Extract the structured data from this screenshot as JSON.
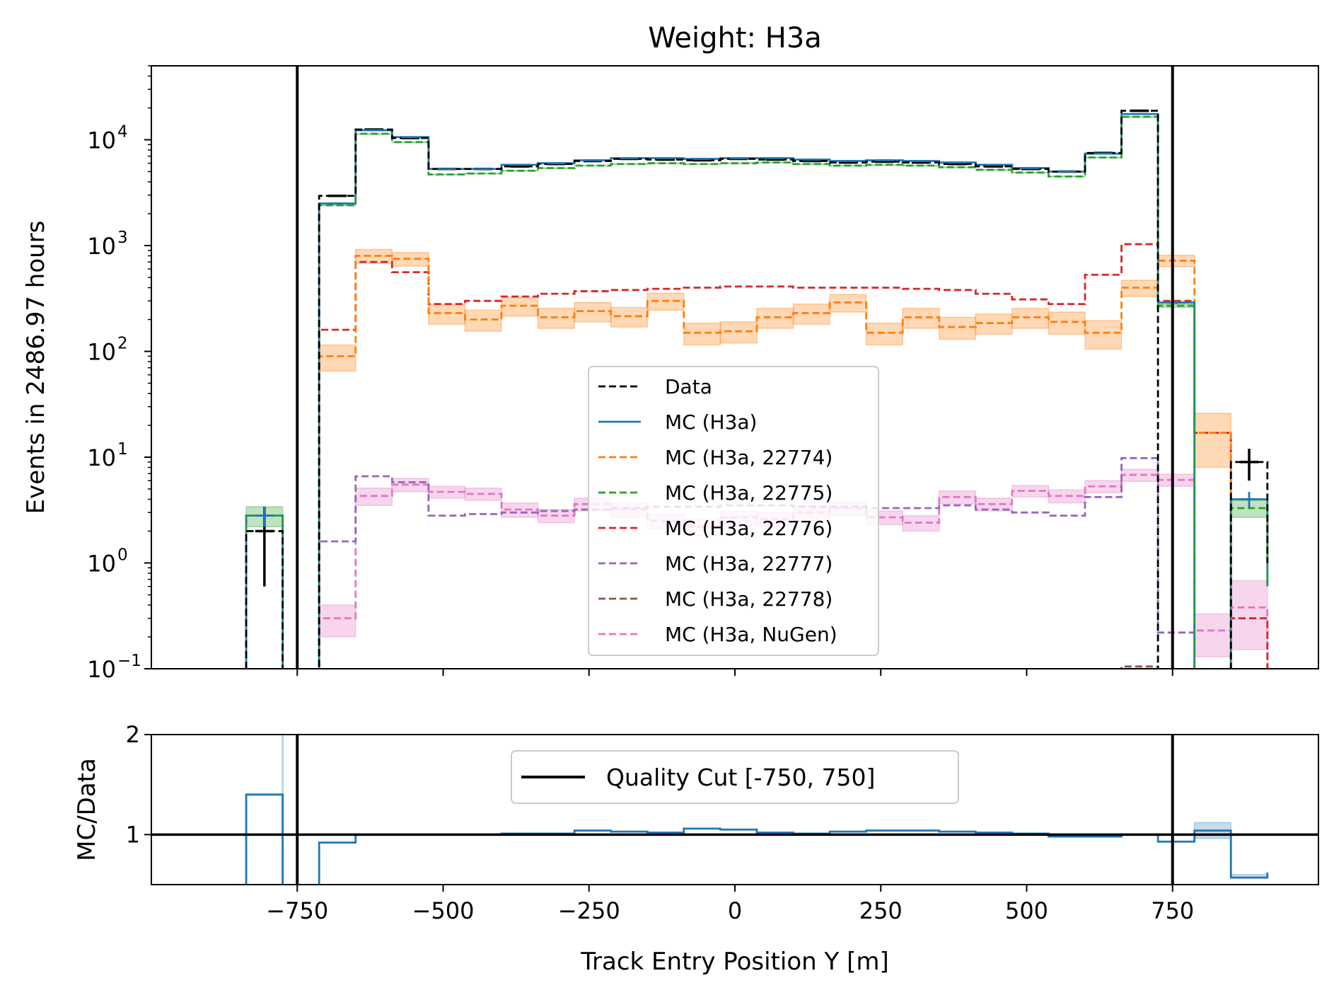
{
  "chart_data": {
    "type": "histogram",
    "title": "Weight: H3a",
    "xlabel": "Track Entry Position Y [m]",
    "ylabel_top": "Events in 2486.97 hours",
    "ylabel_bottom": "MC/Data",
    "xlim": [
      -1000,
      1000
    ],
    "ylim_top": [
      0.1,
      50000
    ],
    "yscale_top": "log",
    "ylim_bottom": [
      0.5,
      2
    ],
    "x_ticks": [
      -750,
      -500,
      -250,
      0,
      250,
      500,
      750
    ],
    "x_tick_labels": [
      "−750",
      "−500",
      "−250",
      "0",
      "250",
      "500",
      "750"
    ],
    "y_ticks_top": [
      {
        "value": 0.1,
        "base": "10",
        "exp": "−1"
      },
      {
        "value": 1,
        "base": "10",
        "exp": "0"
      },
      {
        "value": 10,
        "base": "10",
        "exp": "1"
      },
      {
        "value": 100,
        "base": "10",
        "exp": "2"
      },
      {
        "value": 1000,
        "base": "10",
        "exp": "3"
      },
      {
        "value": 10000,
        "base": "10",
        "exp": "4"
      }
    ],
    "y_ticks_bottom": [
      {
        "value": 1,
        "label": "1"
      },
      {
        "value": 2,
        "label": "2"
      }
    ],
    "bin_edges": [
      -837.5,
      -775,
      -712.5,
      -650,
      -587.5,
      -525,
      -462.5,
      -400,
      -337.5,
      -275,
      -212.5,
      -150,
      -87.5,
      -25,
      37.5,
      100,
      162.5,
      225,
      287.5,
      350,
      412.5,
      475,
      537.5,
      600,
      662.5,
      725,
      787.5,
      850,
      912.5
    ],
    "series": [
      {
        "name": "Data",
        "color": "#000000",
        "dash": true,
        "errors": true,
        "values": [
          2,
          0,
          2950,
          12500,
          10400,
          5300,
          5300,
          5600,
          5900,
          6300,
          6600,
          6500,
          6400,
          6600,
          6500,
          6300,
          6100,
          6200,
          6100,
          5900,
          5600,
          5300,
          5000,
          7500,
          18800,
          0,
          0,
          9,
          1
        ],
        "err": [
          1.4,
          0,
          54,
          112,
          102,
          73,
          73,
          75,
          77,
          79,
          81,
          81,
          80,
          81,
          81,
          79,
          78,
          79,
          78,
          77,
          75,
          73,
          71,
          87,
          137,
          0,
          0,
          3,
          1
        ]
      },
      {
        "name": "MC (H3a)",
        "color": "#1f77b4",
        "dash": false,
        "errors": true,
        "values": [
          2.8,
          0,
          2500,
          12300,
          10600,
          5300,
          5300,
          5800,
          6000,
          6400,
          6700,
          6700,
          6600,
          6700,
          6700,
          6500,
          6300,
          6400,
          6300,
          6100,
          5800,
          5400,
          5000,
          7400,
          17500,
          290,
          0,
          4,
          0.62
        ],
        "err": [
          0.6,
          0,
          20,
          40,
          40,
          30,
          30,
          30,
          30,
          30,
          30,
          30,
          30,
          30,
          30,
          30,
          30,
          30,
          30,
          30,
          30,
          30,
          30,
          30,
          40,
          10,
          0,
          0.7,
          0.4
        ]
      },
      {
        "name": "MC (H3a, 22774)",
        "color": "#ff7f0e",
        "dash": true,
        "band": true,
        "values": [
          0,
          0,
          90,
          800,
          750,
          230,
          200,
          270,
          210,
          240,
          215,
          300,
          150,
          155,
          210,
          230,
          290,
          150,
          210,
          170,
          185,
          210,
          190,
          150,
          400,
          720,
          17,
          0,
          0
        ],
        "err": [
          0,
          0,
          25,
          120,
          110,
          50,
          45,
          55,
          45,
          50,
          45,
          55,
          35,
          35,
          45,
          50,
          55,
          35,
          45,
          40,
          40,
          45,
          45,
          45,
          70,
          90,
          9,
          0,
          0
        ]
      },
      {
        "name": "MC (H3a, 22775)",
        "color": "#2ca02c",
        "dash": true,
        "band": true,
        "values": [
          2.8,
          0,
          2400,
          11400,
          9500,
          4700,
          4800,
          5100,
          5400,
          5700,
          5900,
          6000,
          5900,
          6000,
          6100,
          5900,
          5700,
          5800,
          5700,
          5500,
          5200,
          4900,
          4500,
          6800,
          16500,
          270,
          0,
          3.3,
          0.6
        ],
        "err": [
          0.6,
          0,
          20,
          40,
          40,
          30,
          30,
          30,
          30,
          30,
          30,
          30,
          30,
          30,
          30,
          30,
          30,
          30,
          30,
          30,
          30,
          30,
          30,
          30,
          40,
          10,
          0,
          0.6,
          0.4
        ]
      },
      {
        "name": "MC (H3a, 22776)",
        "color": "#d62728",
        "dash": true,
        "band": false,
        "values": [
          0,
          0,
          160,
          700,
          560,
          280,
          300,
          330,
          350,
          370,
          380,
          390,
          400,
          410,
          410,
          400,
          400,
          400,
          390,
          380,
          350,
          310,
          280,
          530,
          1030,
          300,
          17,
          0.3,
          0
        ],
        "err": []
      },
      {
        "name": "MC (H3a, 22777)",
        "color": "#9467bd",
        "dash": true,
        "band": false,
        "values": [
          0,
          0,
          1.6,
          6.6,
          5.8,
          2.8,
          2.9,
          3.0,
          3.1,
          3.2,
          3.3,
          3.4,
          3.4,
          3.5,
          3.5,
          3.4,
          3.4,
          3.3,
          3.3,
          3.5,
          3.2,
          3.0,
          2.8,
          4.2,
          9.8,
          0.22,
          0,
          0,
          0
        ],
        "err": []
      },
      {
        "name": "MC (H3a, 22778)",
        "color": "#8c564b",
        "dash": true,
        "band": false,
        "values": [
          0,
          0,
          0,
          0,
          0,
          0,
          0,
          0,
          0,
          0,
          0,
          0,
          0,
          0,
          0,
          0,
          0,
          0,
          0,
          0,
          0,
          0,
          0,
          0,
          0.105,
          0,
          0,
          0,
          0
        ],
        "err": []
      },
      {
        "name": "MC (H3a, NuGen)",
        "color": "#e377c2",
        "dash": true,
        "band": true,
        "values": [
          0,
          0,
          0.3,
          4.3,
          5.5,
          4.7,
          4.5,
          3.2,
          2.8,
          3.6,
          3.2,
          2.5,
          2.2,
          2.7,
          2.6,
          3.0,
          3.3,
          2.7,
          2.4,
          4.2,
          3.6,
          4.8,
          4.3,
          5.3,
          6.8,
          6.1,
          0.23,
          0.38,
          0
        ],
        "err": [
          0,
          0,
          0.1,
          0.8,
          0.8,
          0.6,
          0.6,
          0.5,
          0.4,
          0.5,
          0.5,
          0.4,
          0.4,
          0.4,
          0.4,
          0.5,
          0.5,
          0.4,
          0.4,
          0.6,
          0.5,
          0.6,
          0.6,
          0.7,
          0.9,
          0.8,
          0.1,
          0.3,
          0
        ]
      }
    ],
    "ratio": {
      "name": "MC/Data",
      "color": "#1f77b4",
      "values": [
        1.4,
        0,
        0.92,
        1.0,
        1.0,
        1.0,
        1.0,
        1.01,
        1.01,
        1.04,
        1.03,
        1.02,
        1.06,
        1.05,
        1.02,
        1.01,
        1.03,
        1.04,
        1.04,
        1.03,
        1.02,
        1.01,
        0.98,
        0.98,
        1.0,
        0.93,
        1.04,
        0.57,
        0.62
      ],
      "band_low": [
        0,
        0,
        0,
        0,
        0,
        0,
        0,
        0,
        0,
        0,
        0,
        0,
        0,
        0,
        0,
        0,
        0,
        0,
        0,
        0,
        0,
        0,
        0,
        0,
        0,
        0,
        0.96,
        0.57,
        0.0
      ],
      "band_high": [
        0,
        0,
        0,
        0,
        0,
        0,
        0,
        0,
        0,
        0,
        0,
        0,
        0,
        0,
        0,
        0,
        0,
        0,
        0,
        0,
        0,
        0,
        0,
        0,
        0,
        0,
        1.12,
        0.6,
        1.34
      ]
    },
    "quality_cut": {
      "label": "Quality Cut [-750, 750]",
      "lines": [
        -750,
        750
      ],
      "color": "#000000"
    },
    "ratio_reference": 1,
    "legend_top_placement": "center",
    "legend_bottom_placement": "upper center",
    "grid": false
  }
}
